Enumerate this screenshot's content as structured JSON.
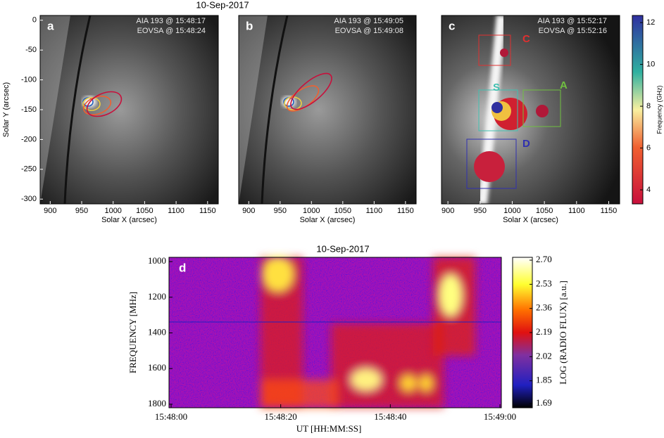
{
  "chart_data": [
    {
      "type": "image",
      "title": "10-Sep-2017",
      "panel_label": "a",
      "annotations": [
        "AIA 193 @ 15:48:17",
        "EOVSA @ 15:48:24"
      ],
      "xlabel": "Solar X (arcsec)",
      "ylabel": "Solar Y (arcsec)",
      "xlim": [
        884,
        1167
      ],
      "xticks": [
        900,
        950,
        1000,
        1050,
        1100,
        1150
      ],
      "ylim": [
        -308,
        8
      ],
      "yticks": [
        0,
        -50,
        -100,
        -150,
        -200,
        -250,
        -300
      ]
    },
    {
      "type": "image",
      "panel_label": "b",
      "annotations": [
        "AIA 193 @ 15:49:05",
        "EOVSA @ 15:49:08"
      ],
      "xlabel": "Solar X (arcsec)",
      "xlim": [
        884,
        1167
      ],
      "xticks": [
        900,
        950,
        1000,
        1050,
        1100,
        1150
      ]
    },
    {
      "type": "image",
      "panel_label": "c",
      "annotations": [
        "AIA 193 @ 15:52:17",
        "EOVSA @ 15:52:16"
      ],
      "xlabel": "Solar X (arcsec)",
      "xlim": [
        890,
        1167
      ],
      "xticks": [
        900,
        950,
        1000,
        1050,
        1100,
        1150
      ],
      "regions": [
        "C",
        "S",
        "A",
        "D"
      ],
      "colorbar": {
        "label": "Frequency (GHz)",
        "lim": [
          3.33,
          12.34
        ],
        "ticks": [
          4,
          6,
          8,
          10,
          12
        ]
      }
    },
    {
      "type": "spectrogram",
      "title": "10-Sep-2017",
      "panel_label": "d",
      "xlabel": "UT [HH:MM:SS]",
      "ylabel": "FREQUENCY [MHz]",
      "xlim": [
        0,
        60
      ],
      "xticks": [
        {
          "value": 0,
          "label": "15:48:00"
        },
        {
          "value": 20,
          "label": "15:48:20"
        },
        {
          "value": 40,
          "label": "15:48:40"
        },
        {
          "value": 60,
          "label": "15:49:00"
        }
      ],
      "ylim": [
        1820,
        976
      ],
      "yticks": [
        1000,
        1200,
        1400,
        1600,
        1800
      ],
      "colorbar": {
        "label": "LOG (RADIO FLUX) [a.u.]",
        "lim": [
          1.66,
          2.72
        ],
        "ticks": [
          1.69,
          1.85,
          2.02,
          2.19,
          2.36,
          2.53,
          {
            "value": 2.7,
            "label": "2.70"
          }
        ]
      }
    }
  ]
}
